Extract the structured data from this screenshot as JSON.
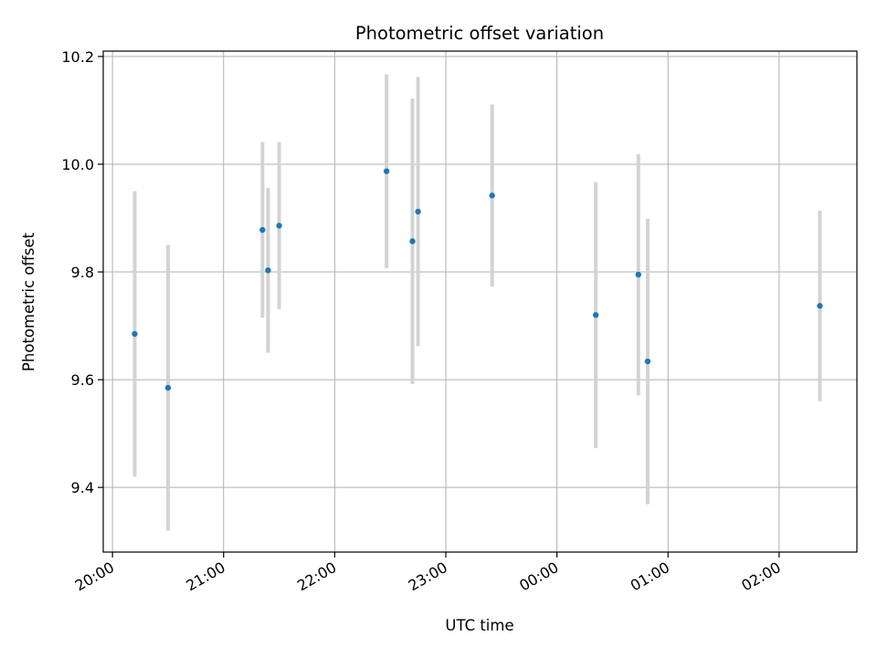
{
  "chart_data": {
    "type": "scatter",
    "title": "Photometric offset variation",
    "xlabel": "UTC time",
    "ylabel": "Photometric offset",
    "x_axis_type": "time",
    "x_tick_labels": [
      "20:00",
      "21:00",
      "22:00",
      "23:00",
      "00:00",
      "01:00",
      "02:00"
    ],
    "y_ticks": [
      9.4,
      9.6,
      9.8,
      10.0,
      10.2
    ],
    "y_tick_labels": [
      "9.4",
      "9.6",
      "9.8",
      "10.0",
      "10.2"
    ],
    "xlim": [
      "19:55",
      "02:42"
    ],
    "ylim": [
      9.28,
      10.21
    ],
    "grid": true,
    "marker_color": "#1f77b4",
    "errorbar_color": "#d3d3d3",
    "points": [
      {
        "time": "20:12",
        "y": 9.685,
        "yerr": 0.265
      },
      {
        "time": "20:30",
        "y": 9.585,
        "yerr": 0.265
      },
      {
        "time": "21:21",
        "y": 9.878,
        "yerr": 0.163
      },
      {
        "time": "21:24",
        "y": 9.803,
        "yerr": 0.153
      },
      {
        "time": "21:30",
        "y": 9.886,
        "yerr": 0.155
      },
      {
        "time": "22:28",
        "y": 9.987,
        "yerr": 0.18
      },
      {
        "time": "22:42",
        "y": 9.857,
        "yerr": 0.265
      },
      {
        "time": "22:45",
        "y": 9.912,
        "yerr": 0.25
      },
      {
        "time": "23:25",
        "y": 9.942,
        "yerr": 0.169
      },
      {
        "time": "00:21",
        "y": 9.72,
        "yerr": 0.247
      },
      {
        "time": "00:44",
        "y": 9.795,
        "yerr": 0.224
      },
      {
        "time": "00:49",
        "y": 9.634,
        "yerr": 0.265
      },
      {
        "time": "02:22",
        "y": 9.737,
        "yerr": 0.177
      }
    ]
  }
}
